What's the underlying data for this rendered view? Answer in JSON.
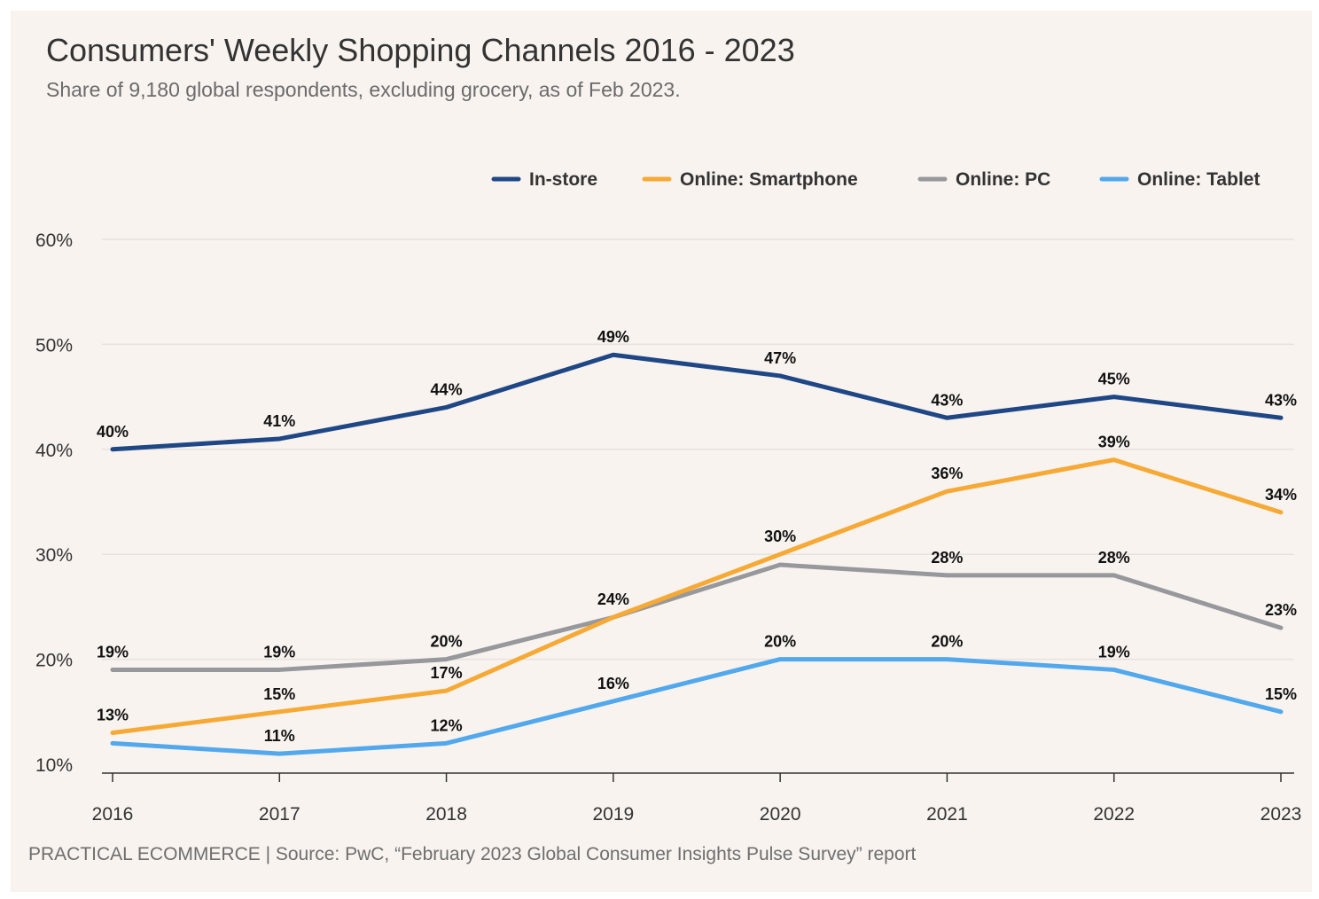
{
  "header": {
    "title": "Consumers' Weekly Shopping Channels 2016 - 2023",
    "subtitle": "Share of 9,180 global respondents, excluding grocery, as of Feb 2023."
  },
  "footer": {
    "source": "PRACTICAL ECOMMERCE | Source: PwC, “February 2023 Global Consumer Insights Pulse Survey” report"
  },
  "chart_data": {
    "type": "line",
    "x": [
      "2016",
      "2017",
      "2018",
      "2019",
      "2020",
      "2021",
      "2022",
      "2023"
    ],
    "ylim": [
      10,
      60
    ],
    "yticks": [
      10,
      20,
      30,
      40,
      50,
      60
    ],
    "ytick_labels": [
      "10%",
      "20%",
      "30%",
      "40%",
      "50%",
      "60%"
    ],
    "grid": true,
    "legend": "top-right",
    "series": [
      {
        "name": "In-store",
        "color": "#1f4785",
        "values": [
          40,
          41,
          44,
          49,
          47,
          43,
          45,
          43
        ]
      },
      {
        "name": "Online: Smartphone",
        "color": "#f6a935",
        "values": [
          13,
          15,
          17,
          24,
          30,
          36,
          39,
          34
        ]
      },
      {
        "name": "Online: PC",
        "color": "#97989c",
        "values": [
          19,
          19,
          20,
          24,
          29,
          28,
          28,
          23
        ]
      },
      {
        "name": "Online: Tablet",
        "color": "#52a8ec",
        "values": [
          12,
          11,
          12,
          16,
          20,
          20,
          19,
          15
        ]
      }
    ],
    "data_labels": [
      {
        "series": "In-store",
        "labels": [
          "40%",
          "41%",
          "44%",
          "49%",
          "47%",
          "43%",
          "45%",
          "43%"
        ]
      },
      {
        "series": "Online: Smartphone",
        "labels": [
          "13%",
          "15%",
          "17%",
          null,
          "30%",
          "36%",
          "39%",
          "34%"
        ]
      },
      {
        "series": "Online: PC",
        "labels": [
          "19%",
          "19%",
          "20%",
          "24%",
          null,
          "28%",
          "28%",
          "23%"
        ]
      },
      {
        "series": "Online: Tablet",
        "labels": [
          null,
          "11%",
          "12%",
          "16%",
          "20%",
          "20%",
          "19%",
          "15%"
        ]
      }
    ]
  }
}
